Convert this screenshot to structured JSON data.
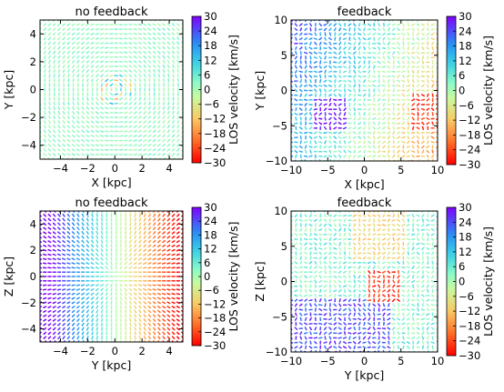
{
  "chart_data": [
    {
      "type": "quiver",
      "title": "no feedback",
      "xlabel": "X [kpc]",
      "ylabel": "Y [kpc]",
      "xlim": [
        -5.5,
        5
      ],
      "ylim": [
        -5,
        5
      ],
      "xticks": [
        -4,
        -2,
        0,
        2,
        4
      ],
      "yticks": [
        -4,
        -2,
        0,
        2,
        4
      ],
      "pattern": "rotating-disk-faceon",
      "colorbar": {
        "label": "LOS velocity [km/s]",
        "range": [
          -30,
          30
        ],
        "ticks": [
          30,
          24,
          18,
          12,
          6,
          0,
          -6,
          -12,
          -18,
          -24,
          -30
        ],
        "colormap": "rainbow"
      }
    },
    {
      "type": "quiver",
      "title": "feedback",
      "xlabel": "X [kpc]",
      "ylabel": "Y [kpc]",
      "xlim": [
        -10,
        10
      ],
      "ylim": [
        -10,
        10
      ],
      "xticks": [
        -10,
        -5,
        0,
        5,
        10
      ],
      "yticks": [
        -10,
        -5,
        0,
        5,
        10
      ],
      "pattern": "turbulent-faceon",
      "colorbar": {
        "label": "LOS velocity [km/s]",
        "range": [
          -30,
          30
        ],
        "ticks": [
          30,
          24,
          18,
          12,
          6,
          0,
          -6,
          -12,
          -18,
          -24,
          -30
        ],
        "colormap": "rainbow"
      }
    },
    {
      "type": "quiver",
      "title": "no feedback",
      "xlabel": "Y [kpc]",
      "ylabel": "Z [kpc]",
      "xlim": [
        -5.5,
        5
      ],
      "ylim": [
        -5,
        5
      ],
      "xticks": [
        -4,
        -2,
        0,
        2,
        4
      ],
      "yticks": [
        -4,
        -2,
        0,
        2,
        4
      ],
      "pattern": "rotating-disk-edgeon",
      "colorbar": {
        "label": "LOS velocity [km/s]",
        "range": [
          -30,
          30
        ],
        "ticks": [
          30,
          24,
          18,
          12,
          6,
          0,
          -6,
          -12,
          -18,
          -24,
          -30
        ],
        "colormap": "rainbow"
      }
    },
    {
      "type": "quiver",
      "title": "feedback",
      "xlabel": "Y [kpc]",
      "ylabel": "Z [kpc]",
      "xlim": [
        -10,
        10
      ],
      "ylim": [
        -10,
        10
      ],
      "xticks": [
        -10,
        -5,
        0,
        5,
        10
      ],
      "yticks": [
        -10,
        -5,
        0,
        5,
        10
      ],
      "pattern": "turbulent-edgeon",
      "colorbar": {
        "label": "LOS velocity [km/s]",
        "range": [
          -30,
          30
        ],
        "ticks": [
          30,
          24,
          18,
          12,
          6,
          0,
          -6,
          -12,
          -18,
          -24,
          -30
        ],
        "colormap": "rainbow"
      }
    }
  ]
}
